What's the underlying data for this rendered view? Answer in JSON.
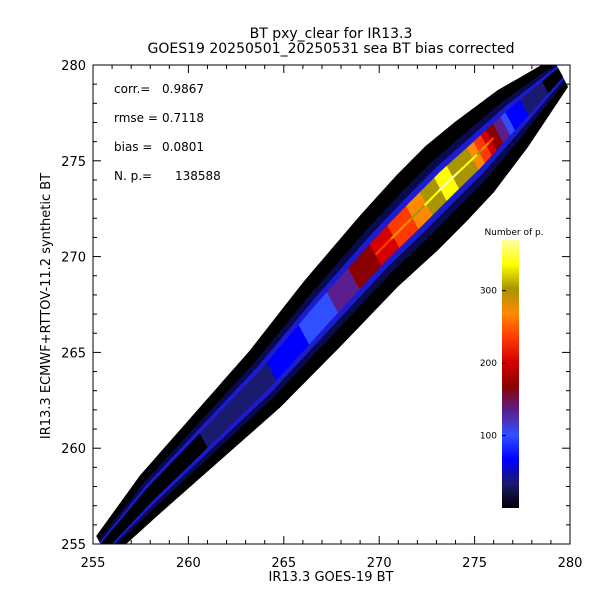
{
  "chart_data": {
    "type": "heatmap",
    "title": "BT pxy_clear for IR13.3",
    "subtitle": "GOES19 20250501_20250531 sea BT bias corrected",
    "xlabel": "IR13.3 GOES-19 BT",
    "ylabel": "IR13.3 ECMWF+RTTOV-11.2 synthetic BT",
    "xlim": [
      255,
      280
    ],
    "ylim": [
      255,
      280
    ],
    "x_ticks": [
      "255",
      "260",
      "265",
      "270",
      "275",
      "280"
    ],
    "y_ticks": [
      "255",
      "260",
      "265",
      "270",
      "275",
      "280"
    ],
    "grid": false,
    "stats": [
      {
        "label": "corr.=",
        "value": "0.9867"
      },
      {
        "label": "rmse =",
        "value": "0.7118"
      },
      {
        "label": "bias =",
        "value": "0.0801"
      },
      {
        "label": "N. p.=",
        "value": "138588"
      }
    ],
    "colorbar": {
      "title": "Number of p.",
      "range": [
        0,
        370
      ],
      "ticks": [
        "100",
        "200",
        "300"
      ],
      "colormap": [
        "#000000",
        "#1a1a6e",
        "#0000ff",
        "#3050ff",
        "#5a1f8c",
        "#8b0000",
        "#d40000",
        "#ff3a00",
        "#ff8a00",
        "#a89500",
        "#ffff00",
        "#ffffa0"
      ]
    },
    "density_ridge": [
      {
        "x": 255.5,
        "y": 254.8,
        "w": 0.5,
        "d": 3
      },
      {
        "x": 258,
        "y": 257.6,
        "w": 0.8,
        "d": 18
      },
      {
        "x": 261,
        "y": 260.6,
        "w": 1.0,
        "d": 35
      },
      {
        "x": 264,
        "y": 263.6,
        "w": 1.2,
        "d": 60
      },
      {
        "x": 267,
        "y": 267.0,
        "w": 1.4,
        "d": 120
      },
      {
        "x": 270,
        "y": 270.3,
        "w": 1.5,
        "d": 210
      },
      {
        "x": 272,
        "y": 272.3,
        "w": 1.6,
        "d": 280
      },
      {
        "x": 273.5,
        "y": 273.8,
        "w": 1.6,
        "d": 350
      },
      {
        "x": 275,
        "y": 275.2,
        "w": 1.5,
        "d": 300
      },
      {
        "x": 277,
        "y": 277.2,
        "w": 1.2,
        "d": 90
      },
      {
        "x": 279.5,
        "y": 279.6,
        "w": 0.6,
        "d": 5
      }
    ]
  }
}
